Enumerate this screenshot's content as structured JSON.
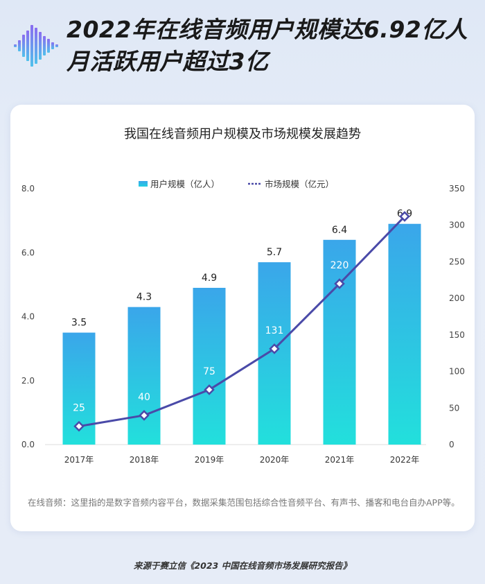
{
  "header": {
    "title_line1": "2022年在线音频用户规模达6.92亿人",
    "title_line2": "月活跃用户超过3亿"
  },
  "chart_data": {
    "type": "bar",
    "title": "我国在线音频用户规模及市场规模发展趋势",
    "categories": [
      "2017年",
      "2018年",
      "2019年",
      "2020年",
      "2021年",
      "2022年"
    ],
    "series": [
      {
        "name": "用户规模（亿人）",
        "type": "bar",
        "axis": "left",
        "values": [
          3.5,
          4.3,
          4.9,
          5.7,
          6.4,
          6.9
        ]
      },
      {
        "name": "市场规模（亿元）",
        "type": "line",
        "axis": "right",
        "values": [
          25,
          40,
          75,
          131,
          220,
          312
        ]
      }
    ],
    "left_axis": {
      "ticks": [
        "0.0",
        "2.0",
        "4.0",
        "6.0",
        "8.0"
      ],
      "ylim": [
        0,
        8
      ]
    },
    "right_axis": {
      "ticks": [
        "0",
        "50",
        "100",
        "150",
        "200",
        "250",
        "300",
        "350"
      ],
      "ylim": [
        0,
        350
      ]
    },
    "legend_position": "top-center",
    "grid": false
  },
  "note": "在线音频：这里指的是数字音频内容平台，数据采集范围包括综合性音频平台、有声书、播客和电台自办APP等。",
  "source": "来源于赛立信《2023 中国在线音频市场发展研究报告》",
  "colors": {
    "bar_top": "#3aa6ea",
    "bar_bottom": "#22e0dc",
    "line": "#4a4aa8",
    "marker_fill": "#ffffff",
    "background": "#e3eaf6"
  }
}
